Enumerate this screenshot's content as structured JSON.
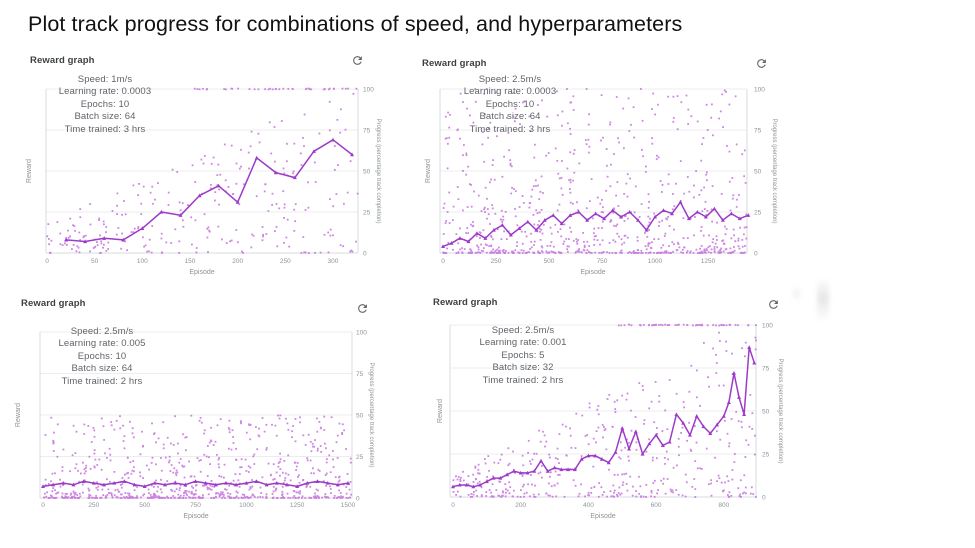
{
  "page": {
    "title": "Plot track progress for combinations of speed, and hyperparameters"
  },
  "colors": {
    "line": "#9d3bc8",
    "scatter": "#bb58d6",
    "grid": "#ececec",
    "axis_border": "#d9dbde",
    "tick_text": "#8e9499",
    "annotation_text": "#5f6368",
    "header_text": "#3c4043",
    "refresh_icon": "#5f6368"
  },
  "chart_data": [
    {
      "type": "scatter",
      "title": "Reward graph",
      "xlabel": "Episode",
      "ylabel_left": "Reward",
      "ylabel_right": "Progress (percentage track completion)",
      "annotation": [
        "Speed: 1m/s",
        "Learning rate: 0.0003",
        "Epochs: 10",
        "Batch size: 64",
        "Time trained: 3 hrs"
      ],
      "x_ticks": [
        0,
        50,
        100,
        150,
        200,
        250,
        300
      ],
      "x_max": 326,
      "y_ticks": [
        0,
        25,
        50,
        75,
        100
      ],
      "ylim": [
        0,
        100
      ],
      "grid": true,
      "line": {
        "x": [
          20,
          40,
          60,
          80,
          100,
          120,
          140,
          160,
          180,
          200,
          220,
          240,
          260,
          280,
          300,
          320
        ],
        "y": [
          8,
          7,
          9,
          8,
          15,
          25,
          23,
          35,
          41,
          31,
          58,
          49,
          46,
          62,
          69,
          60
        ]
      },
      "scatter": {
        "count": 270,
        "seed": 7,
        "env0": 18,
        "env1": 105,
        "bias": 1.7,
        "top_row": {
          "count": 40,
          "from": 0.42,
          "skew": 0.8
        }
      }
    },
    {
      "type": "scatter",
      "title": "Reward graph",
      "xlabel": "Episode",
      "ylabel_left": "Reward",
      "ylabel_right": "Progress (percentage track completion)",
      "annotation": [
        "Speed: 2.5m/s",
        "Learning rate: 0.0003",
        "Epochs: 10",
        "Batch size: 64",
        "Time trained: 3 hrs"
      ],
      "x_ticks": [
        0,
        250,
        500,
        750,
        1000,
        1250
      ],
      "x_max": 1434,
      "y_ticks": [
        0,
        25,
        50,
        75,
        100
      ],
      "ylim": [
        0,
        100
      ],
      "grid": true,
      "line": {
        "x": [
          0,
          40,
          80,
          120,
          160,
          200,
          240,
          280,
          320,
          360,
          400,
          440,
          480,
          520,
          560,
          600,
          640,
          680,
          720,
          760,
          800,
          840,
          880,
          920,
          960,
          1000,
          1040,
          1080,
          1120,
          1160,
          1200,
          1240,
          1280,
          1320,
          1360,
          1400,
          1440
        ],
        "y": [
          4,
          6,
          9,
          7,
          12,
          9,
          14,
          17,
          11,
          15,
          19,
          14,
          20,
          23,
          18,
          23,
          25,
          20,
          24,
          21,
          26,
          22,
          25,
          20,
          14,
          22,
          26,
          24,
          31,
          21,
          25,
          22,
          27,
          20,
          24,
          21,
          23
        ]
      },
      "scatter": {
        "count": 780,
        "seed": 11,
        "env0": 102,
        "env1": 102,
        "bias": 3.0,
        "top_row": {
          "count": 0,
          "from": 1,
          "skew": 1
        }
      }
    },
    {
      "type": "scatter",
      "title": "Reward graph",
      "xlabel": "Episode",
      "ylabel_left": "Reward",
      "ylabel_right": "Progress (percentage track completion)",
      "annotation": [
        "Speed: 2.5m/s",
        "Learning rate: 0.005",
        "Epochs: 10",
        "Batch size: 64",
        "Time trained: 2 hrs"
      ],
      "x_ticks": [
        0,
        250,
        500,
        750,
        1000,
        1250,
        1500
      ],
      "x_max": 1520,
      "y_ticks": [
        0,
        25,
        50,
        75,
        100
      ],
      "ylim": [
        0,
        100
      ],
      "grid": true,
      "line": {
        "x": [
          0,
          50,
          100,
          150,
          200,
          250,
          300,
          350,
          400,
          450,
          500,
          550,
          600,
          650,
          700,
          750,
          800,
          850,
          900,
          950,
          1000,
          1050,
          1100,
          1150,
          1200,
          1250,
          1300,
          1350,
          1400,
          1450,
          1500
        ],
        "y": [
          7,
          8,
          9,
          8,
          10,
          9,
          8,
          9,
          10,
          8,
          7,
          9,
          8,
          9,
          8,
          10,
          9,
          8,
          9,
          8,
          9,
          10,
          8,
          9,
          8,
          7,
          9,
          10,
          9,
          8,
          9
        ]
      },
      "scatter": {
        "count": 780,
        "seed": 13,
        "env0": 50,
        "env1": 50,
        "bias": 2.8,
        "top_row": {
          "count": 0,
          "from": 1,
          "skew": 1
        }
      }
    },
    {
      "type": "scatter",
      "title": "Reward graph",
      "xlabel": "Episode",
      "ylabel_left": "Reward",
      "ylabel_right": "Progress (percentage track completion)",
      "annotation": [
        "Speed: 2.5m/s",
        "Learning rate: 0.001",
        "Epochs: 5",
        "Batch size: 32",
        "Time trained: 2 hrs"
      ],
      "x_ticks": [
        0,
        200,
        400,
        600,
        800
      ],
      "x_max": 895,
      "y_ticks": [
        0,
        25,
        50,
        75,
        100
      ],
      "ylim": [
        0,
        100
      ],
      "grid": true,
      "line": {
        "x": [
          0,
          20,
          40,
          60,
          80,
          100,
          120,
          140,
          160,
          180,
          200,
          220,
          240,
          260,
          280,
          300,
          320,
          340,
          360,
          380,
          400,
          420,
          440,
          460,
          480,
          500,
          520,
          540,
          560,
          580,
          600,
          620,
          640,
          660,
          680,
          700,
          720,
          740,
          760,
          780,
          800,
          815,
          830,
          845,
          860,
          875,
          890
        ],
        "y": [
          6,
          7,
          7,
          6,
          7,
          9,
          11,
          11,
          13,
          15,
          14,
          14,
          15,
          21,
          15,
          17,
          16,
          16,
          16,
          22,
          24,
          24,
          22,
          20,
          26,
          40,
          28,
          38,
          25,
          31,
          36,
          30,
          32,
          48,
          43,
          36,
          47,
          41,
          37,
          42,
          47,
          55,
          72,
          58,
          48,
          87,
          78
        ]
      },
      "scatter": {
        "count": 430,
        "seed": 17,
        "env0": 14,
        "env1": 108,
        "bias": 1.8,
        "top_row": {
          "count": 55,
          "from": 0.53,
          "skew": 0.7
        }
      }
    }
  ]
}
